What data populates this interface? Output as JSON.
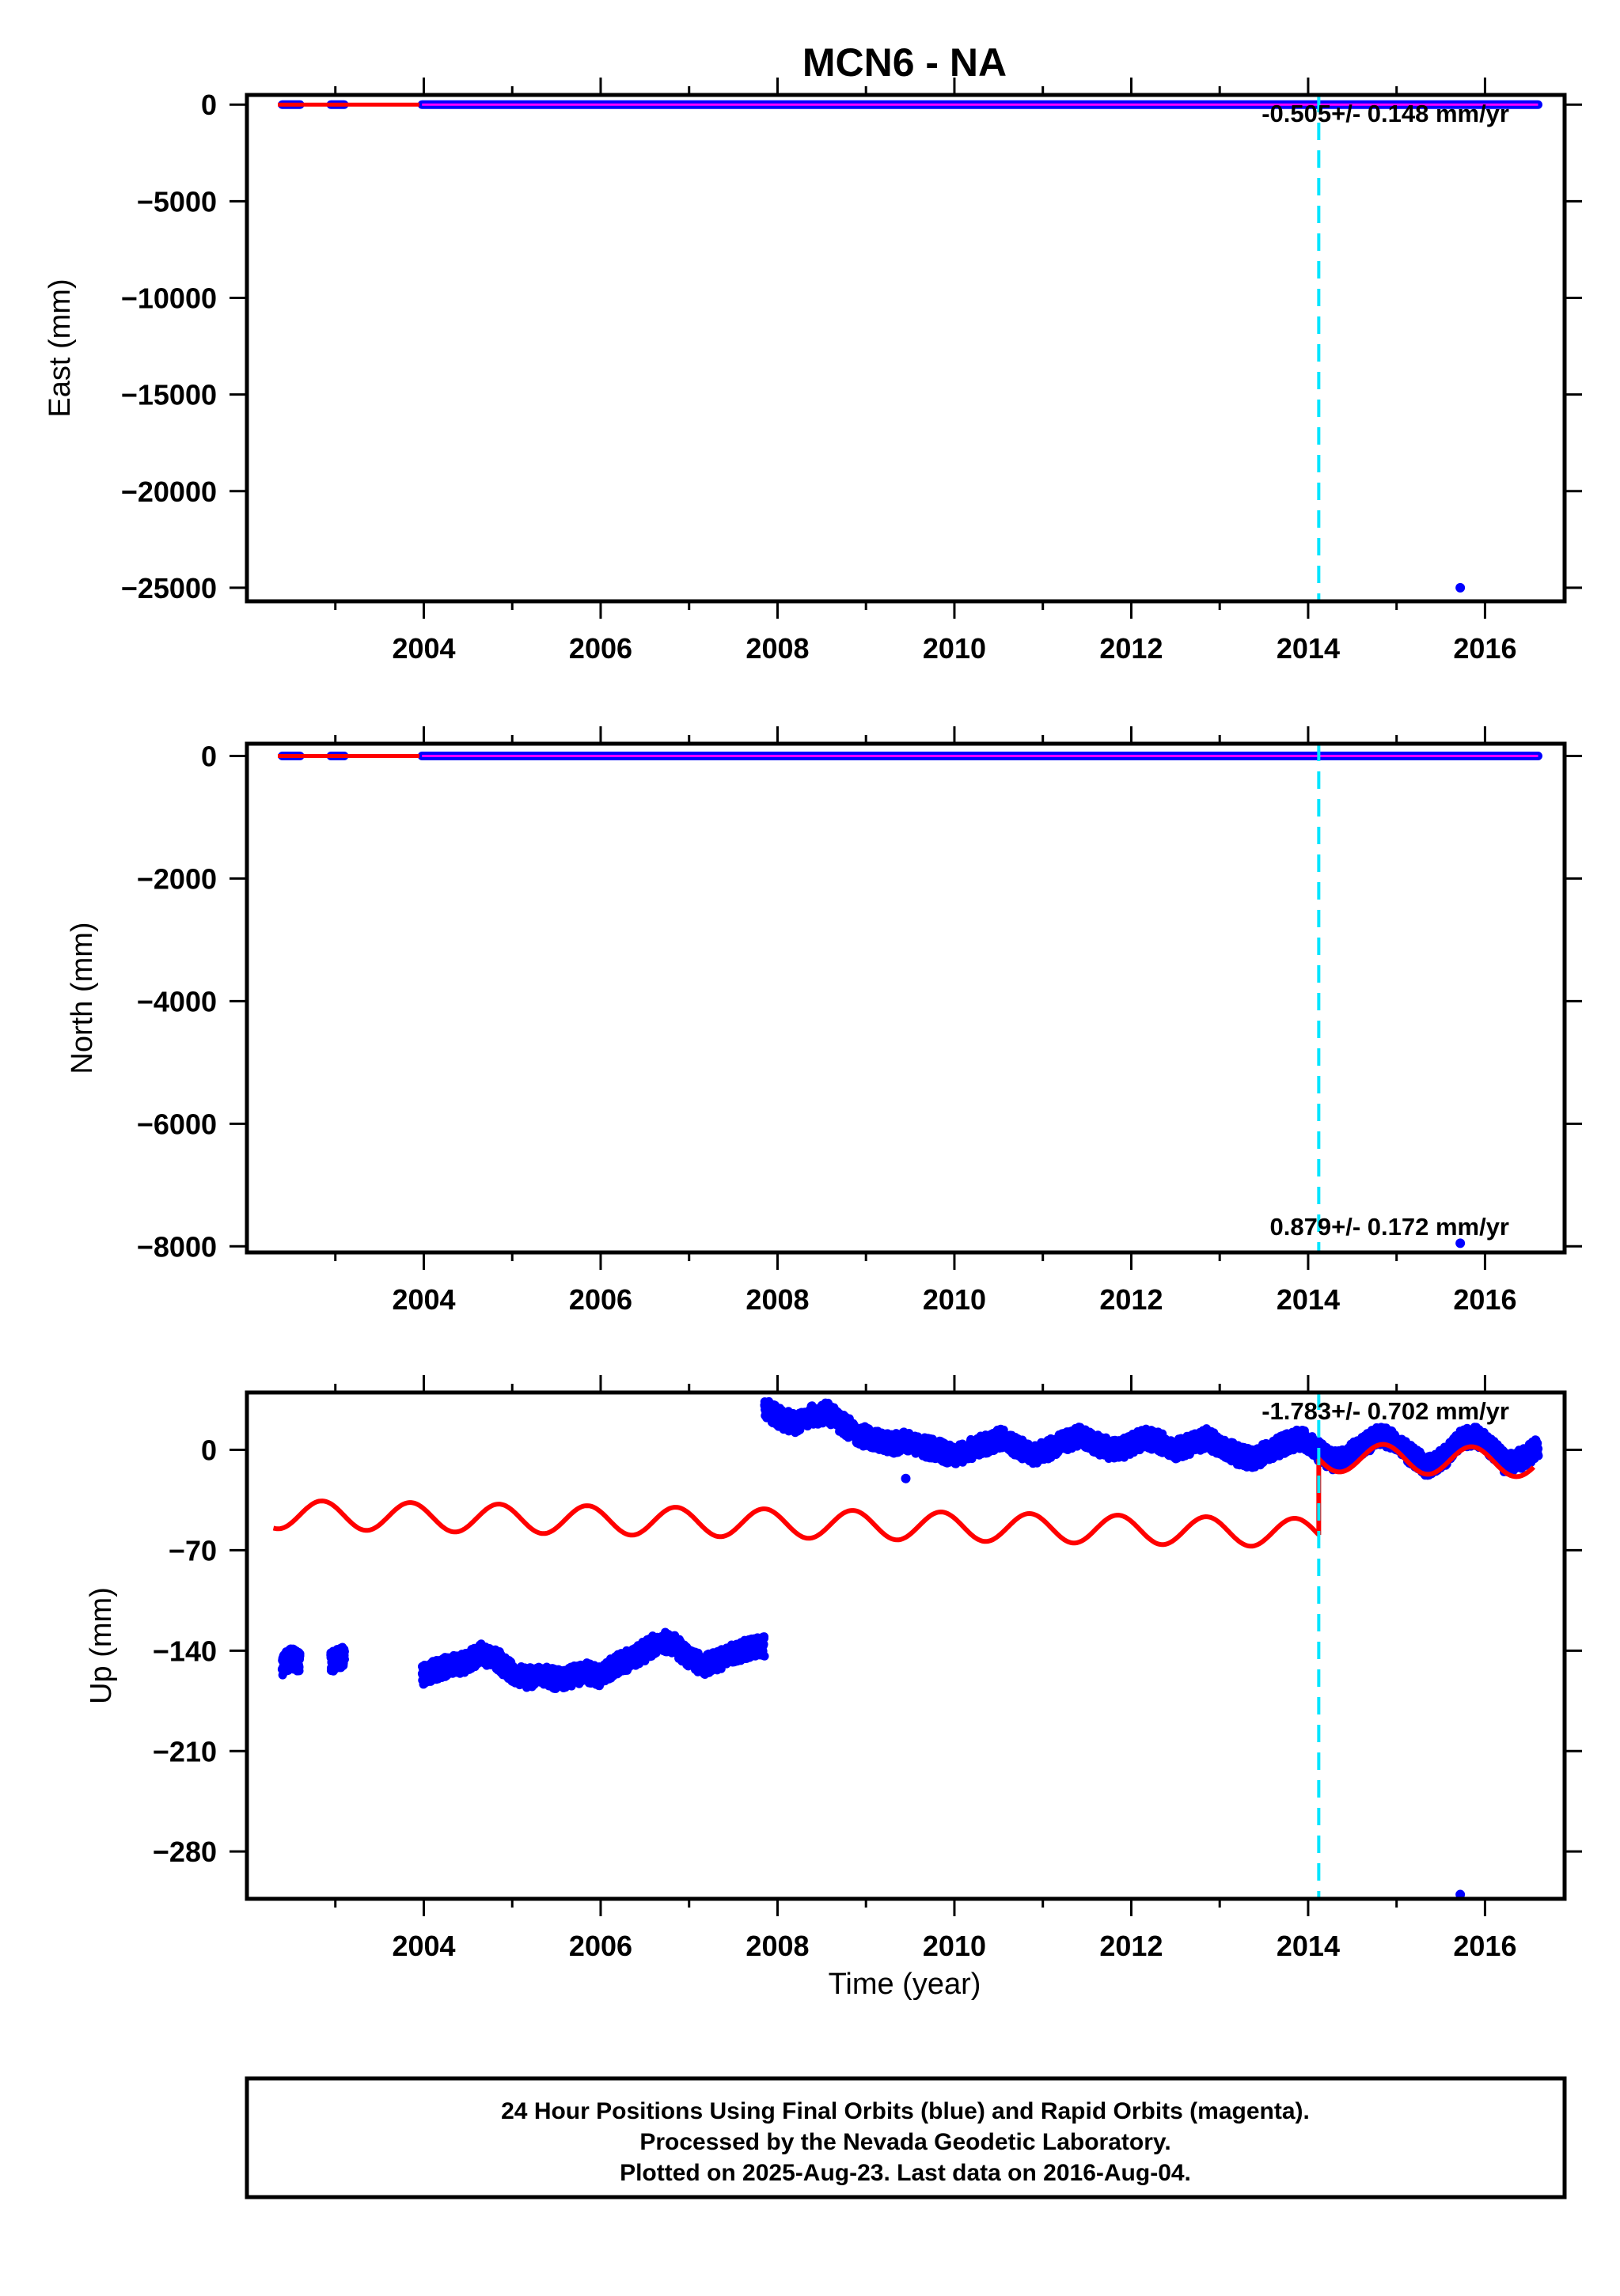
{
  "title": "MCN6 - NA",
  "xlabel": "Time (year)",
  "footer": {
    "line1": "24 Hour Positions Using Final Orbits (blue) and Rapid Orbits (magenta).",
    "line2": "Processed by the Nevada Geodetic Laboratory.",
    "line3": "Plotted on 2025-Aug-23. Last data on 2016-Aug-04."
  },
  "colors": {
    "final_orbits": "#0000ff",
    "rapid_orbits": "#ff00ff",
    "model": "#ff0000",
    "event_line": "#00e5ff",
    "frame": "#000000"
  },
  "chart_data": [
    {
      "type": "scatter",
      "component": "east",
      "ylabel": "East (mm)",
      "xlim": [
        2002.0,
        2016.9
      ],
      "ylim": [
        -25700,
        500
      ],
      "xticks": [
        2004,
        2006,
        2008,
        2010,
        2012,
        2014,
        2016
      ],
      "yticks": [
        0,
        -5000,
        -10000,
        -15000,
        -20000,
        -25000
      ],
      "rate_label": "-0.505+/- 0.148 mm/yr",
      "event_x": 2014.12,
      "data_spans": [
        [
          2002.4,
          2002.6
        ],
        [
          2002.95,
          2003.1
        ],
        [
          2003.98,
          2016.6
        ]
      ],
      "outliers": [
        {
          "x": 2015.72,
          "y": -25000
        }
      ]
    },
    {
      "type": "scatter",
      "component": "north",
      "ylabel": "North (mm)",
      "xlim": [
        2002.0,
        2016.9
      ],
      "ylim": [
        -8100,
        200
      ],
      "xticks": [
        2004,
        2006,
        2008,
        2010,
        2012,
        2014,
        2016
      ],
      "yticks": [
        0,
        -2000,
        -4000,
        -6000,
        -8000
      ],
      "rate_label": "0.879+/- 0.172 mm/yr",
      "event_x": 2014.12,
      "data_spans": [
        [
          2002.4,
          2002.6
        ],
        [
          2002.95,
          2003.1
        ],
        [
          2003.98,
          2016.6
        ]
      ],
      "outliers": [
        {
          "x": 2015.72,
          "y": -7950
        }
      ]
    },
    {
      "type": "scatter",
      "component": "up",
      "ylabel": "Up (mm)",
      "xlim": [
        2002.0,
        2016.9
      ],
      "ylim": [
        -313,
        40
      ],
      "xticks": [
        2004,
        2006,
        2008,
        2010,
        2012,
        2014,
        2016
      ],
      "yticks": [
        0,
        -70,
        -140,
        -210,
        -280
      ],
      "rate_label": "-1.783+/- 0.702 mm/yr",
      "event_x": 2014.12,
      "model": {
        "segments": [
          {
            "x_start": 2002.3,
            "x_end": 2014.12,
            "y_start": -45,
            "y_end": -58,
            "amplitude": 10,
            "phase_peak_year": 2002.85
          },
          {
            "x_start": 2014.12,
            "x_end": 2016.55,
            "y_start": -5,
            "y_end": -9,
            "amplitude": 10,
            "phase_peak_year": 2002.85
          }
        ]
      },
      "point_clusters": [
        {
          "x_start": 2002.4,
          "x_end": 2002.6,
          "y": [
            -150,
            -145,
            -148
          ]
        },
        {
          "x_start": 2002.95,
          "x_end": 2003.1,
          "y": [
            -148,
            -144
          ]
        },
        {
          "x_start": 2003.98,
          "x_end": 2007.85,
          "y": [
            -157,
            -153,
            -150,
            -148,
            -142,
            -146,
            -155,
            -159,
            -157,
            -160,
            -158,
            -155,
            -158,
            -150,
            -146,
            -140,
            -133,
            -136,
            -146,
            -150,
            -146,
            -142,
            -138,
            -137
          ]
        },
        {
          "x_start": 2007.85,
          "x_end": 2016.6,
          "y": [
            30,
            22,
            18,
            24,
            26,
            18,
            10,
            8,
            4,
            6,
            2,
            0,
            -4,
            0,
            4,
            8,
            2,
            -4,
            0,
            6,
            10,
            4,
            0,
            2,
            8,
            6,
            0,
            4,
            8,
            2,
            -4,
            -6,
            0,
            4,
            8,
            0,
            -8,
            -4,
            4,
            10,
            6,
            -4,
            -12,
            -6,
            6,
            10,
            2,
            -10,
            -6,
            2
          ]
        }
      ],
      "outliers": [
        {
          "x": 2009.45,
          "y": -20
        },
        {
          "x": 2015.72,
          "y": -310
        }
      ]
    }
  ]
}
